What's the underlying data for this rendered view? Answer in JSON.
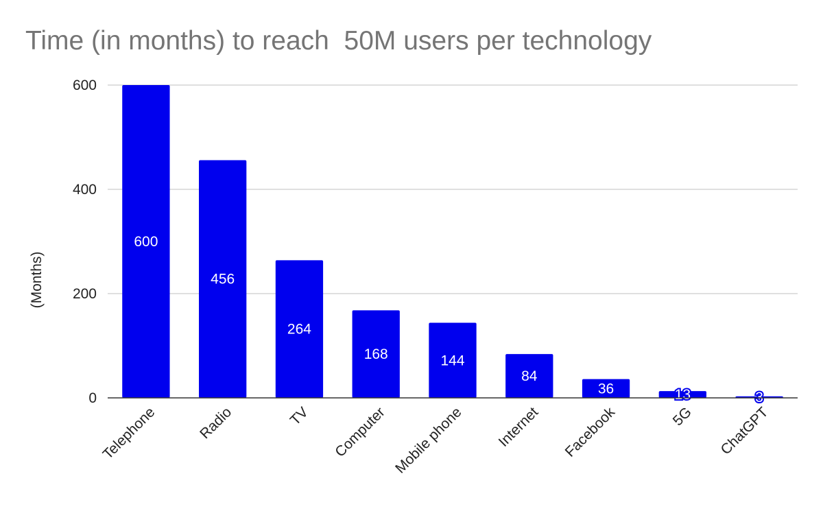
{
  "chart_data": {
    "type": "bar",
    "title": "Time (in months) to reach  50M users per technology",
    "xlabel": "",
    "ylabel": "(Months)",
    "categories": [
      "Telephone",
      "Radio",
      "TV",
      "Computer",
      "Mobile phone",
      "Internet",
      "Facebook",
      "5G",
      "ChatGPT"
    ],
    "series": [
      {
        "name": "Months",
        "values": [
          600,
          456,
          264,
          168,
          144,
          84,
          36,
          13,
          3
        ],
        "color": "#0000ee"
      }
    ],
    "ylim": [
      0,
      600
    ],
    "yticks": [
      0,
      200,
      400,
      600
    ],
    "grid": true,
    "legend": "none",
    "data_labels": true
  }
}
